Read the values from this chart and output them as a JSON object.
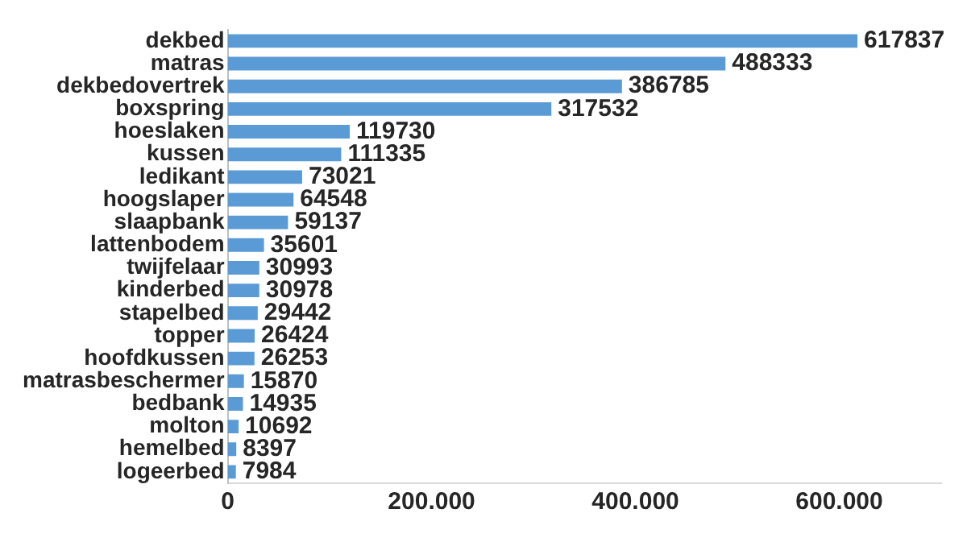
{
  "chart_data": {
    "type": "bar",
    "orientation": "horizontal",
    "categories": [
      "dekbed",
      "matras",
      "dekbedovertrek",
      "boxspring",
      "hoeslaken",
      "kussen",
      "ledikant",
      "hoogslaper",
      "slaapbank",
      "lattenbodem",
      "twijfelaar",
      "kinderbed",
      "stapelbed",
      "topper",
      "hoofdkussen",
      "matrasbeschermer",
      "bedbank",
      "molton",
      "hemelbed",
      "logeerbed"
    ],
    "values": [
      617837,
      488333,
      386785,
      317532,
      119730,
      111335,
      73021,
      64548,
      59137,
      35601,
      30993,
      30978,
      29442,
      26424,
      26253,
      15870,
      14935,
      10692,
      8397,
      7984
    ],
    "color": "#5b9bd5",
    "xlim": [
      0,
      700000
    ],
    "xticks": [
      0,
      {
        "value": 200000,
        "label": "200.000"
      },
      {
        "value": 400000,
        "label": "400.000"
      },
      {
        "value": 600000,
        "label": "600.000"
      }
    ],
    "data_labels": true,
    "grid": false,
    "legend": false
  }
}
